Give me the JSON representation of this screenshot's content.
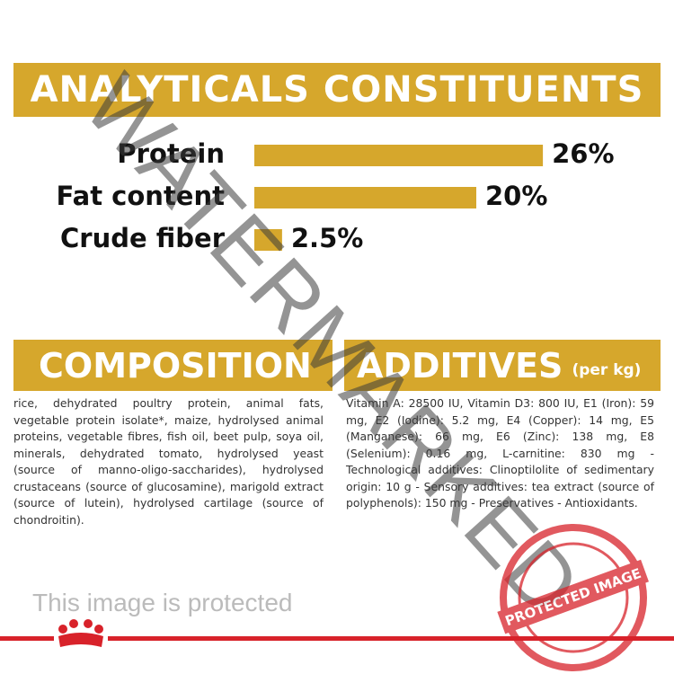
{
  "chart_data": {
    "type": "bar",
    "title": "ANALYTICALS CONSTITUENTS",
    "categories": [
      "Protein",
      "Fat content",
      "Crude fiber"
    ],
    "values": [
      26,
      20,
      2.5
    ],
    "value_labels": [
      "26%",
      "20%",
      "2.5%"
    ],
    "color": "#d6a72c"
  },
  "composition": {
    "title": "COMPOSITION",
    "text": "rice, dehydrated poultry protein, animal fats, vegetable protein isolate*, maize, hydrolysed animal proteins, vegetable fibres, fish oil, beet pulp, soya oil, minerals, dehydrated tomato, hydrolysed yeast (source of manno-oligo-saccharides), hydrolysed crustaceans (source of glucosamine), marigold extract (source of lutein), hydrolysed cartilage (source of chondroitin)."
  },
  "additives": {
    "title": "ADDITIVES",
    "subtitle": "(per kg)",
    "text": "Vitamin A: 28500 IU, Vitamin D3: 800 IU, E1 (Iron): 59 mg, E2 (Iodine): 5.2 mg, E4 (Copper): 14 mg, E5 (Manganese): 66 mg, E6 (Zinc): 138 mg, E8 (Selenium): 0.16 mg, L-carnitine: 830 mg - Technological additives: Clinoptilolite of sedimentary origin: 10 g - Sensory additives: tea extract (source of polyphenols): 150 mg - Preservatives - Antioxidants."
  },
  "notice": "This image is protected",
  "watermark": "WATERMARKED",
  "stamp": "PROTECTED IMAGE"
}
